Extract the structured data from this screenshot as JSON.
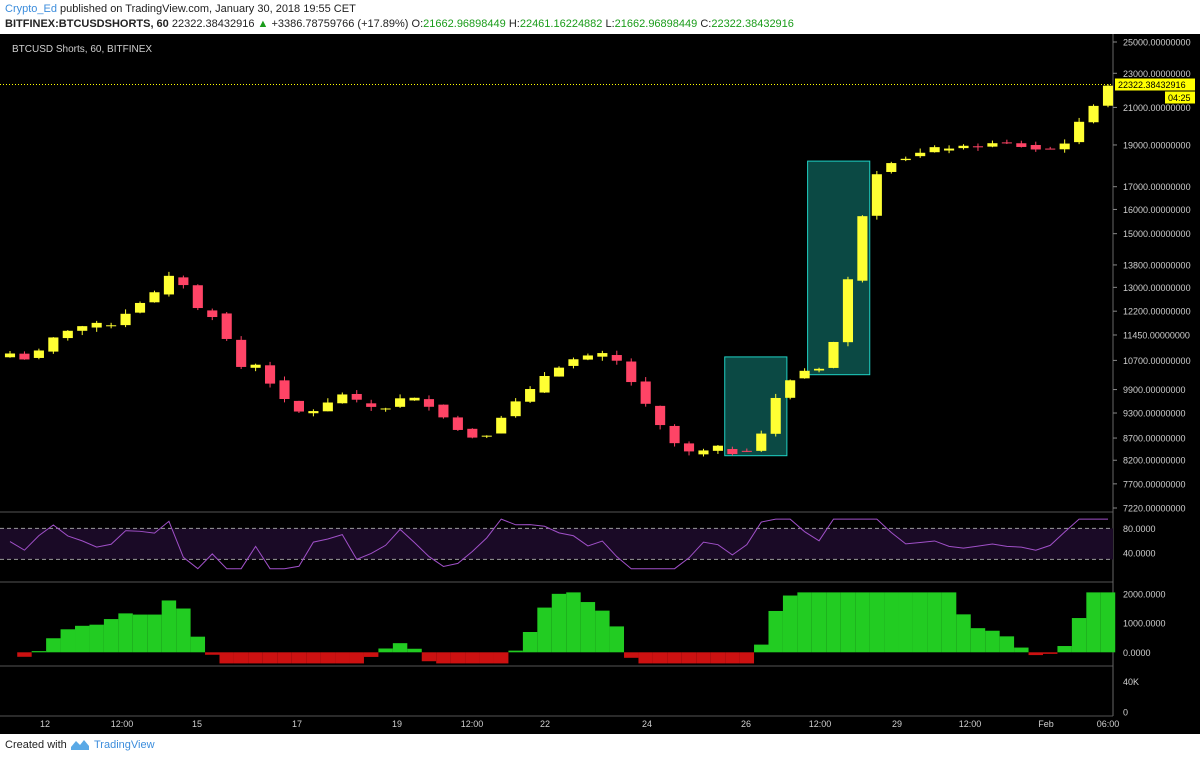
{
  "header": {
    "author": "Crypto_Ed",
    "published": " published on TradingView.com, January 30, 2018 19:55 CET",
    "symbol": "BITFINEX:BTCUSDSHORTS, 60",
    "price": "22322.38432916",
    "change_arrow": "▲",
    "change": "+3386.78759766 (+17.89%)",
    "o_label": "O:",
    "o_value": "21662.96898449",
    "h_label": "H:",
    "h_value": "22461.16224882",
    "l_label": "L:",
    "l_value": "21662.96898449",
    "c_label": "C:",
    "c_value": "22322.38432916"
  },
  "footer": {
    "created_with": "Created with",
    "brand": "TradingView"
  },
  "chart_data": {
    "type": "candlestick",
    "title": "BTCUSD Shorts, 60, BITFINEX",
    "last_price_label": "22322.38432916",
    "countdown_label": "04:25",
    "x_ticks": [
      "12",
      "12:00",
      "15",
      "17",
      "19",
      "12:00",
      "22",
      "24",
      "26",
      "12:00",
      "29",
      "12:00",
      "Feb",
      "06:00"
    ],
    "y_ticks": [
      "25000.00000000",
      "23000.00000000",
      "21000.00000000",
      "19000.00000000",
      "17000.00000000",
      "16000.00000000",
      "15000.00000000",
      "13800.00000000",
      "13000.00000000",
      "12200.00000000",
      "11450.00000000",
      "10700.00000000",
      "9900.00000000",
      "9300.00000000",
      "8700.00000000",
      "8200.00000000",
      "7700.00000000",
      "7220.00000000"
    ],
    "y_tick_values": [
      25000,
      23000,
      21000,
      19000,
      17000,
      16000,
      15000,
      13800,
      13000,
      12200,
      11450,
      10700,
      9900,
      9300,
      8700,
      8200,
      7700,
      7220
    ],
    "log_scale": true,
    "close_path": [
      [
        12,
        10900
      ],
      [
        13,
        10700
      ],
      [
        14,
        11300
      ],
      [
        15,
        11700
      ],
      [
        16,
        11750
      ],
      [
        17,
        11800
      ],
      [
        18,
        12400
      ],
      [
        19,
        12800
      ],
      [
        20,
        13600
      ],
      [
        21,
        12300
      ],
      [
        22,
        12000
      ],
      [
        23,
        10500
      ],
      [
        24,
        10600
      ],
      [
        25,
        9700
      ],
      [
        26,
        9300
      ],
      [
        27,
        9400
      ],
      [
        28,
        9800
      ],
      [
        29,
        9500
      ],
      [
        30,
        9400
      ],
      [
        31,
        9700
      ],
      [
        32,
        9600
      ],
      [
        33,
        9200
      ],
      [
        34,
        8700
      ],
      [
        35,
        8800
      ],
      [
        36,
        9400
      ],
      [
        37,
        9800
      ],
      [
        38,
        10400
      ],
      [
        39,
        10700
      ],
      [
        40,
        10800
      ],
      [
        41,
        10900
      ],
      [
        42,
        10100
      ],
      [
        43,
        9200
      ],
      [
        44,
        8600
      ],
      [
        45,
        8300
      ],
      [
        46,
        8500
      ],
      [
        47,
        8350
      ],
      [
        48,
        8500
      ],
      [
        49,
        9700
      ],
      [
        50,
        10400
      ],
      [
        51,
        10450
      ],
      [
        52,
        11500
      ],
      [
        53,
        15400
      ],
      [
        54,
        18100
      ],
      [
        55,
        18300
      ],
      [
        56,
        18600
      ],
      [
        57,
        18900
      ],
      [
        58,
        18850
      ],
      [
        59,
        19000
      ],
      [
        60,
        19100
      ],
      [
        61,
        18900
      ],
      [
        62,
        18700
      ],
      [
        63,
        19200
      ],
      [
        64,
        20700
      ],
      [
        65,
        22322
      ]
    ],
    "highlight_boxes": [
      {
        "from": 46.5,
        "to": 49.5,
        "low": 8300,
        "high": 10800
      },
      {
        "from": 50.5,
        "to": 53.5,
        "low": 10300,
        "high": 18200
      }
    ],
    "rsi": {
      "y_ticks": [
        "80.0000",
        "40.0000"
      ],
      "y_tick_values": [
        80,
        40
      ],
      "upper_band": 80,
      "lower_band": 30
    },
    "histogram": {
      "y_ticks": [
        "2000.0000",
        "1000.0000",
        "0.0000"
      ],
      "y_tick_values": [
        2000,
        1000,
        0
      ]
    },
    "volume": {
      "y_ticks": [
        "40K",
        "0"
      ],
      "y_tick_values": [
        40000,
        0
      ]
    },
    "colors": {
      "background": "#000000",
      "up": "#ffff33",
      "down": "#ff4466",
      "last_price": "#ffff00",
      "rsi_line": "#a050c8",
      "rsi_fill": "#1a0a26",
      "hist_pos": "#22cc22",
      "hist_neg": "#cc1111",
      "highlight": "#1fd1c4"
    }
  }
}
